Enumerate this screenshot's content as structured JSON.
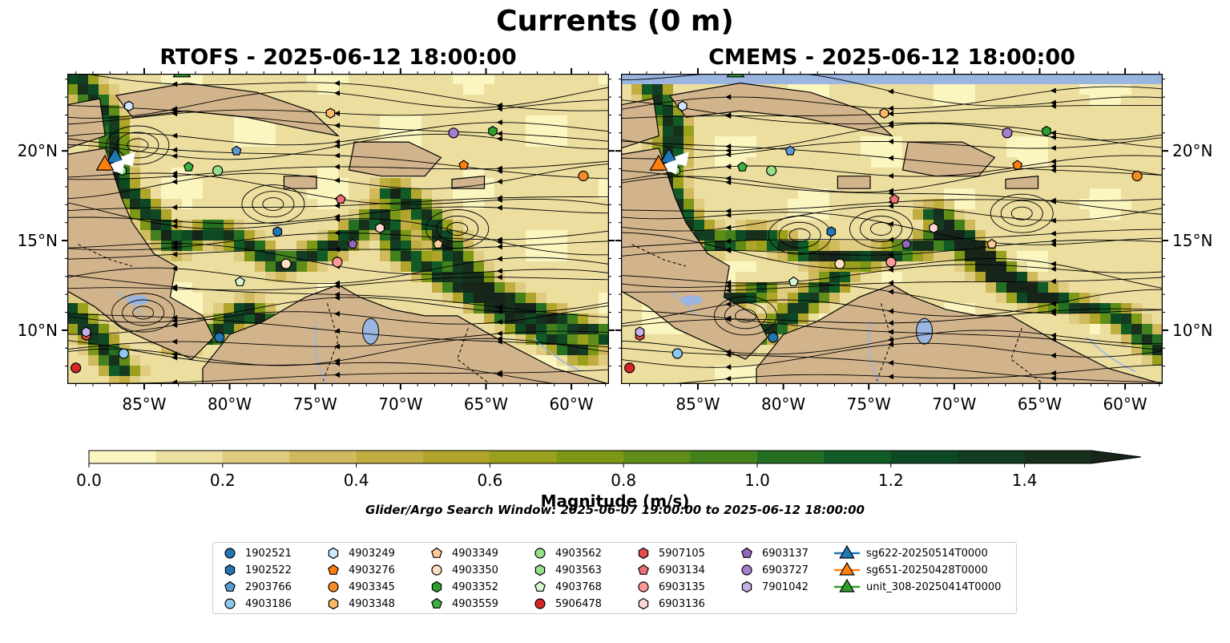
{
  "figure": {
    "title": "Currents (0 m)",
    "search_window": "Glider/Argo Search Window: 2025-06-07 19:00:00 to 2025-06-12 18:00:00"
  },
  "chart_data": [
    {
      "type": "heatmap",
      "panel": "left",
      "title": "RTOFS - 2025-06-12 18:00:00",
      "model": "RTOFS",
      "xlim": [
        -89.5,
        -57.8
      ],
      "ylim": [
        7.0,
        24.3
      ],
      "x_ticks": [
        "85°W",
        "80°W",
        "75°W",
        "70°W",
        "65°W",
        "60°W"
      ],
      "x_tick_values": [
        -85,
        -80,
        -75,
        -70,
        -65,
        -60
      ],
      "y_ticks": [
        "20°N",
        "15°N",
        "10°N"
      ],
      "y_tick_values": [
        20,
        15,
        10
      ],
      "y_tick_side": "left",
      "overlay": "streamlines"
    },
    {
      "type": "heatmap",
      "panel": "right",
      "title": "CMEMS - 2025-06-12 18:00:00",
      "model": "CMEMS",
      "xlim": [
        -89.5,
        -57.8
      ],
      "ylim": [
        7.0,
        24.3
      ],
      "x_ticks": [
        "85°W",
        "80°W",
        "75°W",
        "70°W",
        "65°W",
        "60°W"
      ],
      "x_tick_values": [
        -85,
        -80,
        -75,
        -70,
        -65,
        -60
      ],
      "y_ticks": [
        "20°N",
        "15°N",
        "10°N"
      ],
      "y_tick_values": [
        20,
        15,
        10
      ],
      "y_tick_side": "right",
      "overlay": "streamlines"
    }
  ],
  "colorbar": {
    "label": "Magnitude (m/s)",
    "ticks": [
      "0.0",
      "0.2",
      "0.4",
      "0.6",
      "0.8",
      "1.0",
      "1.2",
      "1.4"
    ],
    "tick_values": [
      0.0,
      0.2,
      0.4,
      0.6,
      0.8,
      1.0,
      1.2,
      1.4
    ],
    "vmin": 0.0,
    "vmax": 1.5,
    "extend": "max",
    "levels": [
      "#fbf5c0",
      "#ecde9f",
      "#dfcc80",
      "#d1ba5e",
      "#c2ad40",
      "#b0a52a",
      "#98a01c",
      "#7d9816",
      "#5f8d18",
      "#42811c",
      "#256f22",
      "#115b27",
      "#0d4a23",
      "#133c22",
      "#17301c",
      "#16241a"
    ]
  },
  "colors": {
    "land": "#d2b48c",
    "water": "#99b5e0",
    "tab_blue": "#1f77b4",
    "tab_orange": "#ff7f0e",
    "tab_green": "#2ca02c",
    "tab_red": "#d62728",
    "tab_purple": "#9467bd"
  },
  "floats": [
    {
      "id": "1902521",
      "marker": "circle",
      "color": "#1f77b4",
      "lon": -80.6,
      "lat": 9.6
    },
    {
      "id": "1902522",
      "marker": "hexagon",
      "color": "#1f77b4",
      "lon": -77.2,
      "lat": 15.5
    },
    {
      "id": "2903766",
      "marker": "pentagon",
      "color": "#5b9bd5",
      "lon": -79.6,
      "lat": 20.0
    },
    {
      "id": "4903186",
      "marker": "circle",
      "color": "#8ec7ee",
      "lon": -86.2,
      "lat": 8.7
    },
    {
      "id": "4903249",
      "marker": "hexagon",
      "color": "#cfe8ff",
      "lon": -85.9,
      "lat": 22.5
    },
    {
      "id": "4903276",
      "marker": "pentagon",
      "color": "#ff7f0e",
      "lon": -66.3,
      "lat": 19.2
    },
    {
      "id": "4903345",
      "marker": "circle",
      "color": "#f28c28",
      "lon": -59.3,
      "lat": 18.6
    },
    {
      "id": "4903348",
      "marker": "hexagon",
      "color": "#ffb86b",
      "lon": -74.1,
      "lat": 22.1
    },
    {
      "id": "4903349",
      "marker": "pentagon",
      "color": "#ffc89a",
      "lon": -67.8,
      "lat": 14.8
    },
    {
      "id": "4903350",
      "marker": "circle",
      "color": "#ffe0c0",
      "lon": -76.7,
      "lat": 13.7
    },
    {
      "id": "4903352",
      "marker": "hexagon",
      "color": "#2ca02c",
      "lon": -64.6,
      "lat": 21.1
    },
    {
      "id": "4903559",
      "marker": "pentagon",
      "color": "#3cb043",
      "lon": -82.4,
      "lat": 19.1
    },
    {
      "id": "4903562",
      "marker": "circle",
      "color": "#98df8a",
      "lon": -80.7,
      "lat": 18.9
    },
    {
      "id": "4903563",
      "marker": "hexagon",
      "color": "#98df8a",
      "lon": -86.3,
      "lat": 18.9
    },
    {
      "id": "4903768",
      "marker": "pentagon",
      "color": "#d9f7cf",
      "lon": -79.4,
      "lat": 12.7
    },
    {
      "id": "5906478",
      "marker": "circle",
      "color": "#d62728",
      "lon": -89.0,
      "lat": 7.9
    },
    {
      "id": "5907105",
      "marker": "hexagon",
      "color": "#e34a4a",
      "lon": -88.4,
      "lat": 9.7
    },
    {
      "id": "6903134",
      "marker": "pentagon",
      "color": "#f0707a",
      "lon": -73.5,
      "lat": 17.3
    },
    {
      "id": "6903135",
      "marker": "circle",
      "color": "#ff9896",
      "lon": -73.7,
      "lat": 13.8
    },
    {
      "id": "6903136",
      "marker": "hexagon",
      "color": "#ffd6d4",
      "lon": -71.2,
      "lat": 15.7
    },
    {
      "id": "6903137",
      "marker": "pentagon",
      "color": "#9467bd",
      "lon": -72.8,
      "lat": 14.8
    },
    {
      "id": "6903727",
      "marker": "circle",
      "color": "#a47fce",
      "lon": -66.9,
      "lat": 21.0
    },
    {
      "id": "7901042",
      "marker": "hexagon",
      "color": "#c5b0e4",
      "lon": -88.4,
      "lat": 9.9
    }
  ],
  "gliders": [
    {
      "id": "sg622-20250514T0000",
      "marker": "triangle",
      "color": "#1f77b4",
      "lon": -86.7,
      "lat": 19.6
    },
    {
      "id": "sg651-20250428T0000",
      "marker": "triangle",
      "color": "#ff7f0e",
      "lon": -87.3,
      "lat": 19.2
    },
    {
      "id": "unit_308-20250414T0000",
      "marker": "triangle",
      "color": "#2ca02c",
      "lon": -82.8,
      "lat": 24.4
    }
  ]
}
